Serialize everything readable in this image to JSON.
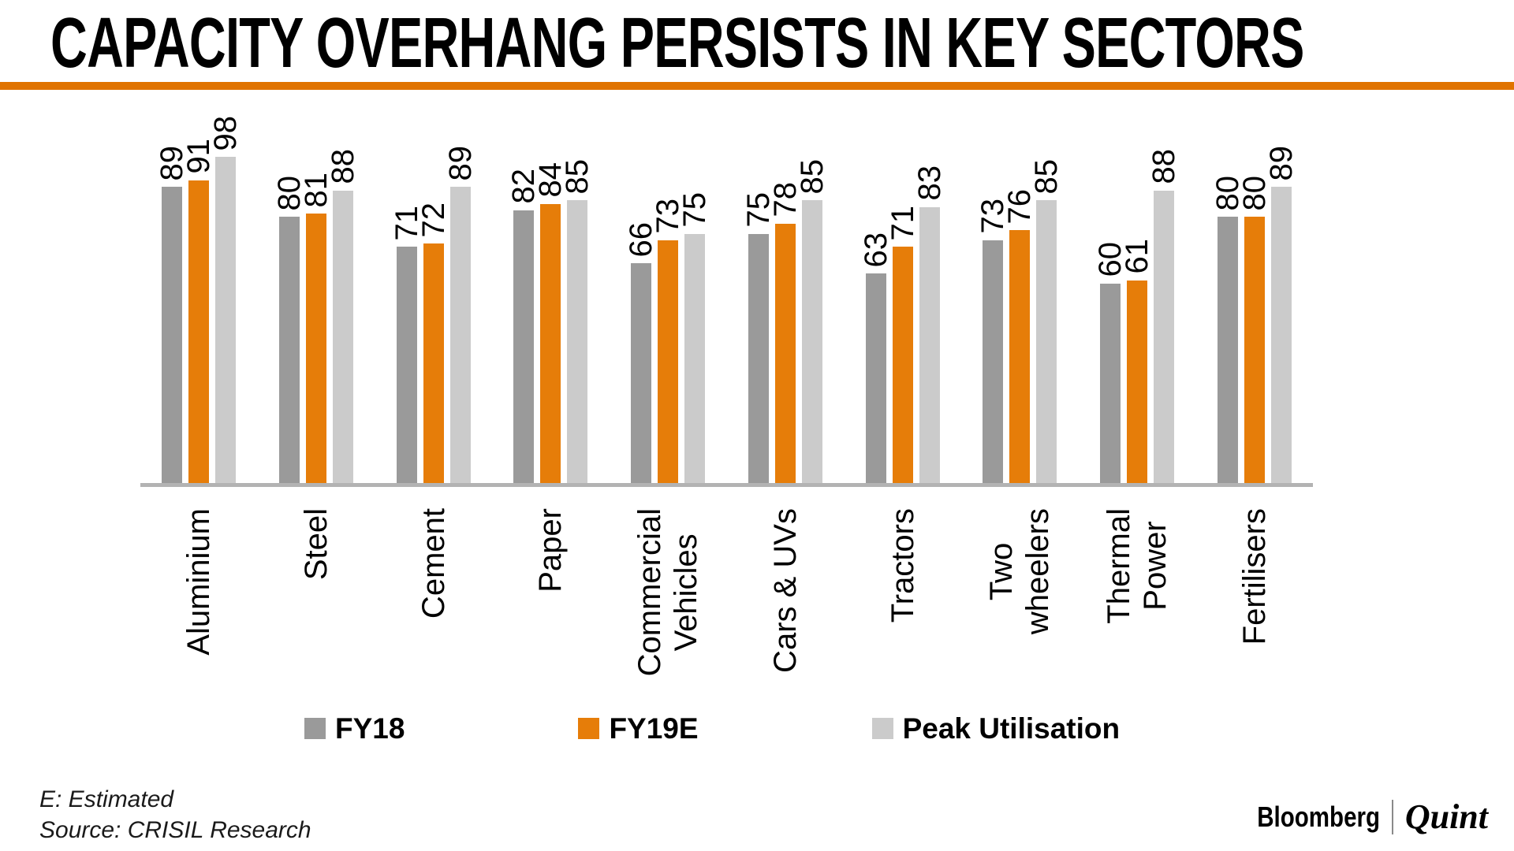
{
  "title": "CAPACITY OVERHANG PERSISTS IN KEY SECTORS",
  "accent_rule_color": "#E07300",
  "chart_data": {
    "type": "bar",
    "title": "CAPACITY OVERHANG PERSISTS IN KEY SECTORS",
    "categories": [
      [
        "Aluminium"
      ],
      [
        "Steel"
      ],
      [
        "Cement"
      ],
      [
        "Paper"
      ],
      [
        "Commercial",
        "Vehicles"
      ],
      [
        "Cars & UVs"
      ],
      [
        "Tractors"
      ],
      [
        "Two",
        "wheelers"
      ],
      [
        "Thermal",
        "Power"
      ],
      [
        "Fertilisers"
      ]
    ],
    "series": [
      {
        "name": "FY18",
        "color": "#9A9A9A",
        "values": [
          89,
          80,
          71,
          82,
          66,
          75,
          63,
          73,
          60,
          80
        ]
      },
      {
        "name": "FY19E",
        "color": "#E67D09",
        "values": [
          91,
          81,
          72,
          84,
          73,
          78,
          71,
          76,
          61,
          80
        ]
      },
      {
        "name": "Peak Utilisation",
        "color": "#CBCBCB",
        "values": [
          98,
          88,
          89,
          85,
          75,
          85,
          83,
          85,
          88,
          89
        ]
      }
    ],
    "value_labels": true,
    "ylim": [
      0,
      100
    ],
    "axis_line_color": "#B3B3B3",
    "grid": false,
    "legend_position": "bottom"
  },
  "footnotes": [
    "E: Estimated",
    "Source: CRISIL Research"
  ],
  "branding": {
    "primary": "Bloomberg",
    "separator": "|",
    "secondary": "Quint"
  }
}
